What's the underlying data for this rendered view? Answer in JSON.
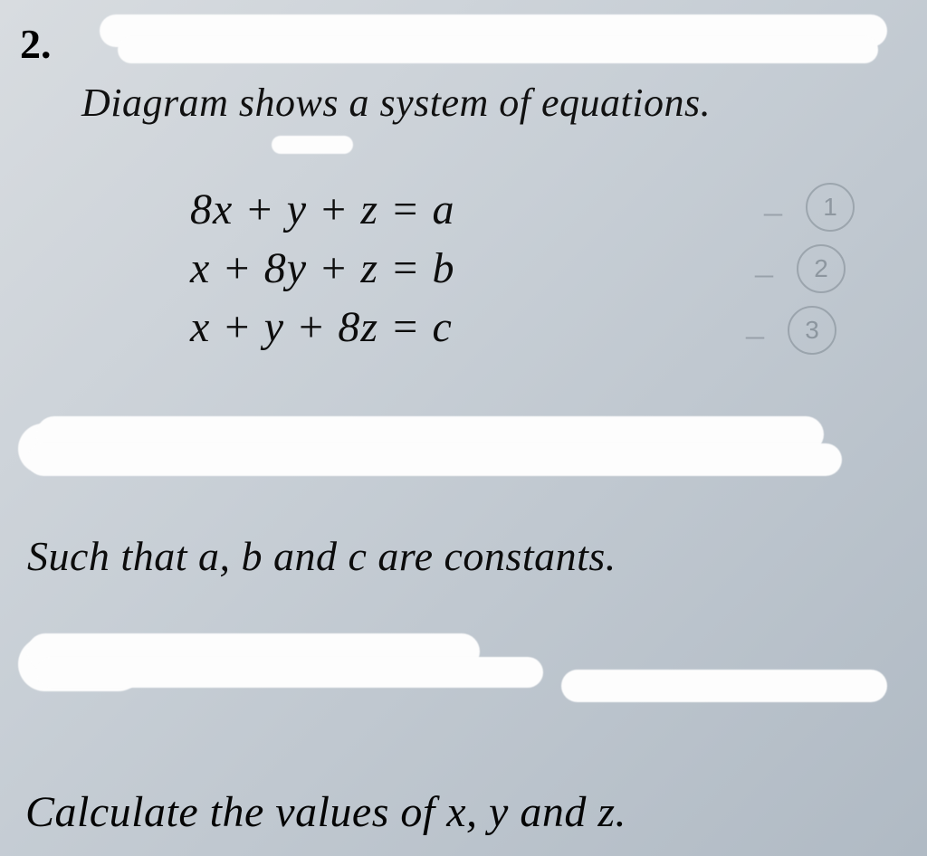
{
  "question": {
    "number": "2.",
    "prompt": "Diagram shows a system of equations.",
    "equations": [
      "8x + y + z = a",
      "x + 8y + z = b",
      "x + y + 8z = c"
    ],
    "constants_note": "Such that a, b and c are constants.",
    "task": "Calculate the values of x, y and z."
  },
  "pencil_labels": [
    "1",
    "2",
    "3"
  ],
  "style": {
    "background_gradient": [
      "#d8dce0",
      "#c8cfd6",
      "#b0bac4"
    ],
    "text_color": "#1a1a1a",
    "scribble_color": "#fdfdfd",
    "pencil_color": "rgba(90,100,110,0.35)",
    "font_family": "Georgia, serif",
    "font_style": "italic",
    "qnum_fontsize": 46,
    "prompt_fontsize": 44,
    "equation_fontsize": 48,
    "constants_fontsize": 46,
    "task_fontsize": 48
  }
}
